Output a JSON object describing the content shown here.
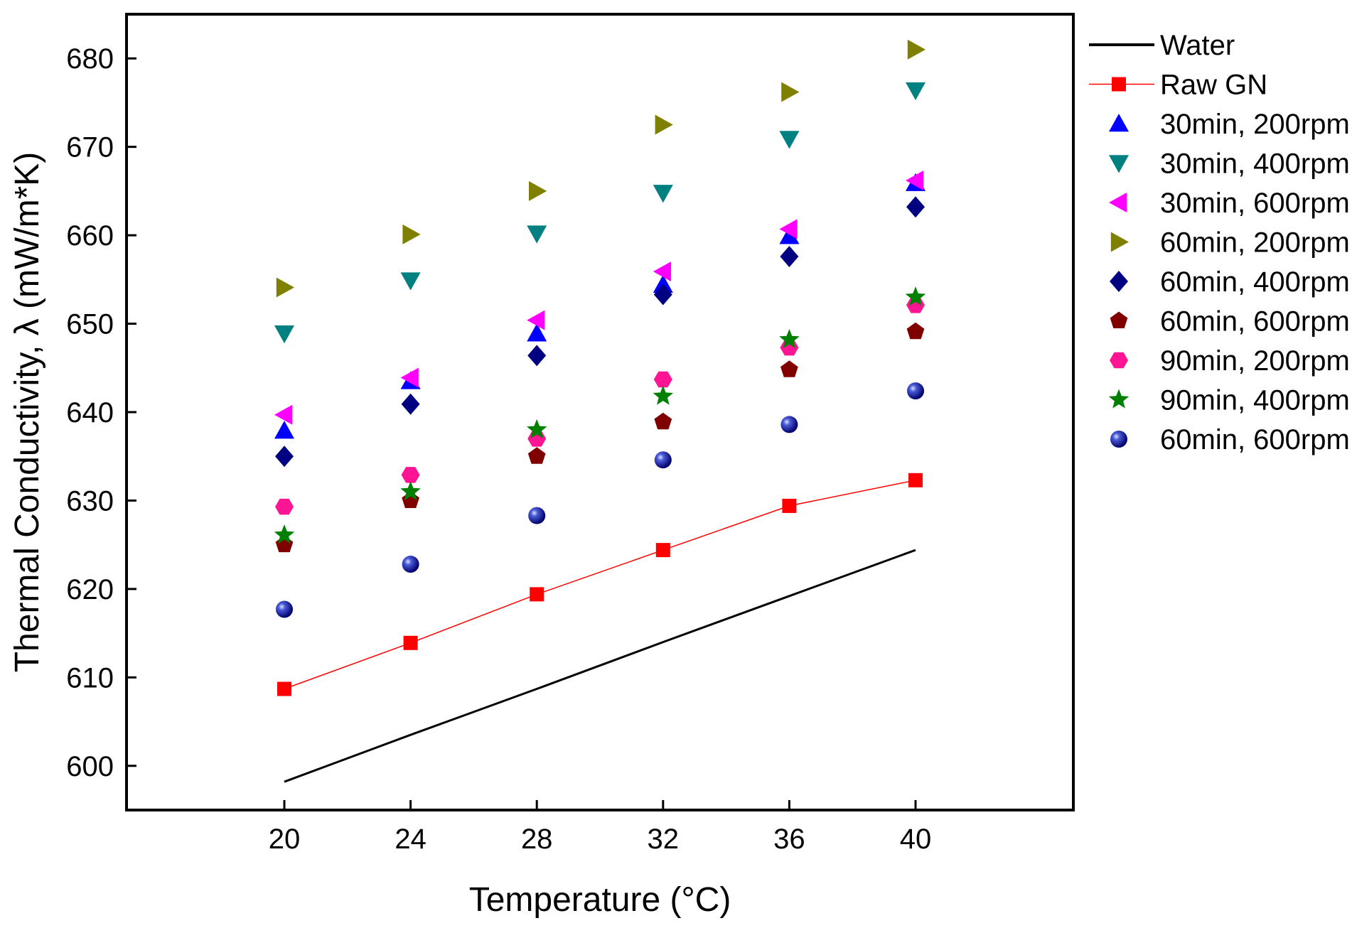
{
  "chart_data": {
    "type": "scatter",
    "title": "",
    "xlabel": "Temperature (°C)",
    "ylabel": "Thermal Conductivity, λ (mW/m*K)",
    "xlim": [
      15,
      45
    ],
    "ylim": [
      595,
      685
    ],
    "x_ticks": [
      20,
      24,
      28,
      32,
      36,
      40
    ],
    "y_ticks": [
      600,
      610,
      620,
      630,
      640,
      650,
      660,
      670,
      680
    ],
    "legend_position": "right",
    "x": [
      20,
      24,
      28,
      32,
      36,
      40
    ],
    "series": [
      {
        "name": "Water",
        "kind": "line",
        "color": "#000000",
        "values": [
          598.2,
          603.5,
          608.7,
          614.0,
          619.2,
          624.4
        ]
      },
      {
        "name": "Raw GN",
        "kind": "line-marker",
        "marker": "square",
        "color": "#ff0000",
        "values": [
          608.7,
          613.9,
          619.4,
          624.4,
          629.4,
          632.3
        ]
      },
      {
        "name": "30min, 200rpm",
        "kind": "marker",
        "marker": "triangle-up",
        "color": "#0000ff",
        "values": [
          637.9,
          643.5,
          648.9,
          654.4,
          659.9,
          665.9
        ]
      },
      {
        "name": "30min, 400rpm",
        "kind": "marker",
        "marker": "triangle-down",
        "color": "#008080",
        "values": [
          648.9,
          654.9,
          660.2,
          664.8,
          670.9,
          676.4
        ]
      },
      {
        "name": "30min, 600rpm",
        "kind": "marker",
        "marker": "triangle-left",
        "color": "#ff00ff",
        "values": [
          639.7,
          643.9,
          650.4,
          655.9,
          660.7,
          666.2
        ]
      },
      {
        "name": "60min, 200rpm",
        "kind": "marker",
        "marker": "triangle-right",
        "color": "#808000",
        "values": [
          654.1,
          660.1,
          665.0,
          672.5,
          676.2,
          681.0
        ]
      },
      {
        "name": "60min, 400rpm",
        "kind": "marker",
        "marker": "diamond",
        "color": "#000080",
        "values": [
          635.0,
          640.9,
          646.4,
          653.3,
          657.6,
          663.2
        ]
      },
      {
        "name": "60min, 600rpm",
        "kind": "marker",
        "marker": "pentagon",
        "color": "#800000",
        "values": [
          625.0,
          630.0,
          635.0,
          638.9,
          644.8,
          649.1
        ]
      },
      {
        "name": "90min, 200rpm",
        "kind": "marker",
        "marker": "hexagon",
        "color": "#ff1493",
        "values": [
          629.3,
          632.9,
          637.0,
          643.7,
          647.3,
          652.1
        ]
      },
      {
        "name": "90min, 400rpm",
        "kind": "marker",
        "marker": "star",
        "color": "#008000",
        "values": [
          626.1,
          631.0,
          638.0,
          641.8,
          648.2,
          653.0
        ]
      },
      {
        "name": "60min, 600rpm",
        "kind": "marker",
        "marker": "sphere",
        "color": "#00008b",
        "values": [
          617.7,
          622.8,
          628.3,
          634.6,
          638.6,
          642.4
        ]
      }
    ]
  }
}
